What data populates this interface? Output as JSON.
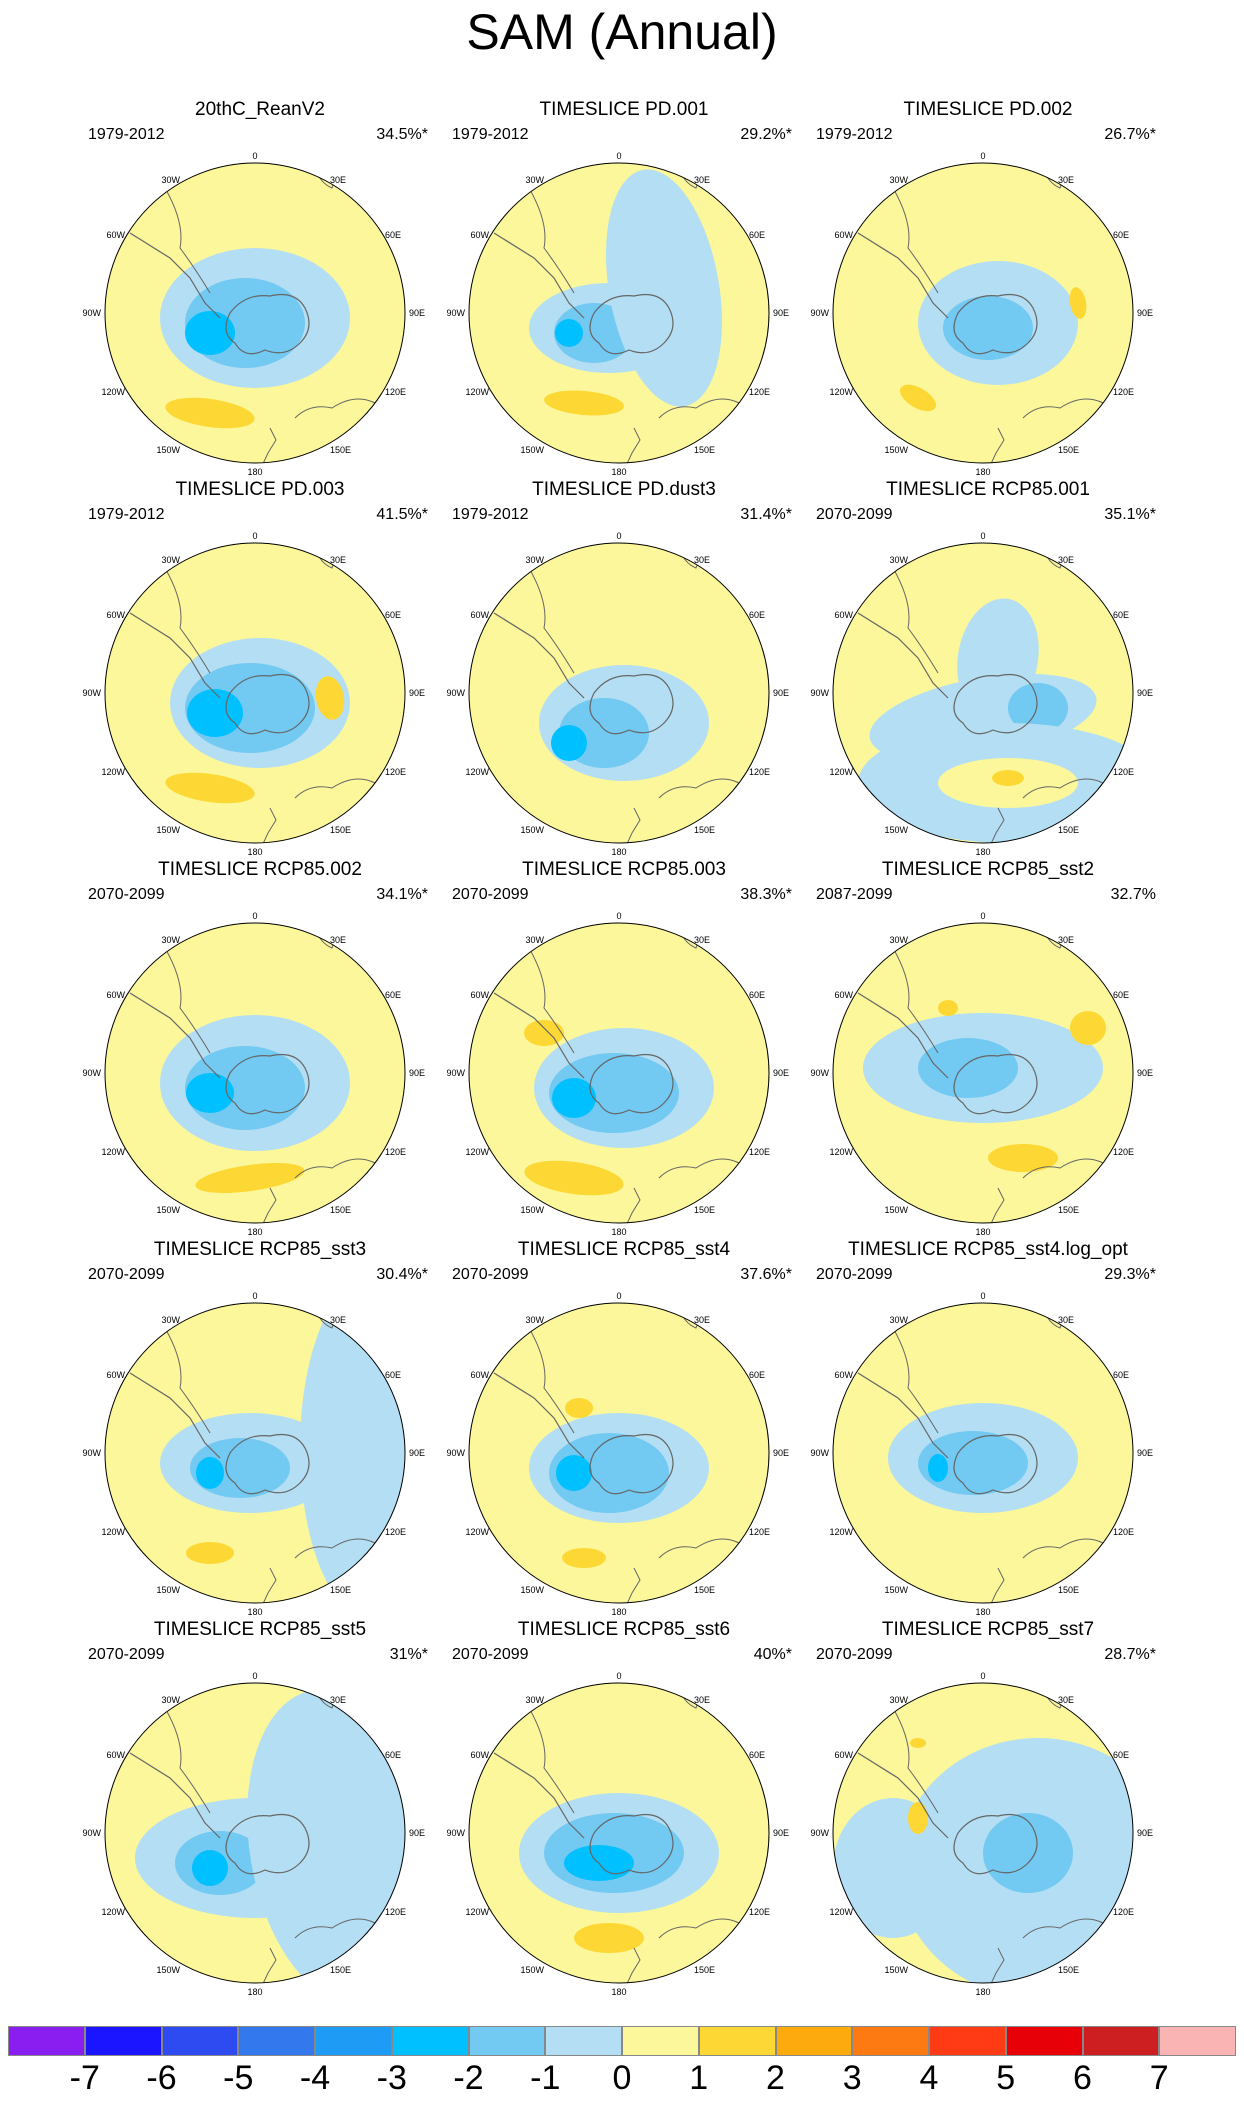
{
  "title": "SAM (Annual)",
  "map_labels": {
    "lon_top": "0",
    "lon_30w": "30W",
    "lon_30e": "30E",
    "lon_60w": "60W",
    "lon_60e": "60E",
    "lon_90w": "90W",
    "lon_90e": "90E",
    "lon_120w": "120W",
    "lon_120e": "120E",
    "lon_150w": "150W",
    "lon_150e": "150E",
    "lon_bottom": "180"
  },
  "panels": [
    {
      "title": "20thC_ReanV2",
      "period": "1979-2012",
      "percent": "34.5%*"
    },
    {
      "title": "TIMESLICE PD.001",
      "period": "1979-2012",
      "percent": "29.2%*"
    },
    {
      "title": "TIMESLICE PD.002",
      "period": "1979-2012",
      "percent": "26.7%*"
    },
    {
      "title": "TIMESLICE PD.003",
      "period": "1979-2012",
      "percent": "41.5%*"
    },
    {
      "title": "TIMESLICE PD.dust3",
      "period": "1979-2012",
      "percent": "31.4%*"
    },
    {
      "title": "TIMESLICE RCP85.001",
      "period": "2070-2099",
      "percent": "35.1%*"
    },
    {
      "title": "TIMESLICE RCP85.002",
      "period": "2070-2099",
      "percent": "34.1%*"
    },
    {
      "title": "TIMESLICE RCP85.003",
      "period": "2070-2099",
      "percent": "38.3%*"
    },
    {
      "title": "TIMESLICE RCP85_sst2",
      "period": "2087-2099",
      "percent": "32.7%"
    },
    {
      "title": "TIMESLICE RCP85_sst3",
      "period": "2070-2099",
      "percent": "30.4%*"
    },
    {
      "title": "TIMESLICE RCP85_sst4",
      "period": "2070-2099",
      "percent": "37.6%*"
    },
    {
      "title": "TIMESLICE RCP85_sst4.log_opt",
      "period": "2070-2099",
      "percent": "29.3%*"
    },
    {
      "title": "TIMESLICE RCP85_sst5",
      "period": "2070-2099",
      "percent": "31%*"
    },
    {
      "title": "TIMESLICE RCP85_sst6",
      "period": "2070-2099",
      "percent": "40%*"
    },
    {
      "title": "TIMESLICE RCP85_sst7",
      "period": "2070-2099",
      "percent": "28.7%*"
    }
  ],
  "colorbar": {
    "colors": [
      "#8a1ef0",
      "#1a14ff",
      "#2d4bf0",
      "#3478ee",
      "#1e9bf5",
      "#00c0ff",
      "#72c9f2",
      "#b4def3",
      "#fbf79a",
      "#fdd834",
      "#fcaa0d",
      "#fd7912",
      "#fe3b14",
      "#e80008",
      "#cd1e22",
      "#fbb4b4"
    ],
    "tick_labels": [
      "-7",
      "-6",
      "-5",
      "-4",
      "-3",
      "-2",
      "-1",
      "0",
      "1",
      "2",
      "3",
      "4",
      "5",
      "6",
      "7"
    ]
  },
  "colors": {
    "level_0_to_1": "#fbf79a",
    "level_1_to_2": "#fdd834",
    "level_m1_to_0": "#b4def3",
    "level_m2_to_m1": "#72c9f2",
    "level_m3_to_m2": "#00c0ff",
    "level_m4_to_m3": "#1e9bf5",
    "coastline": "#666666"
  }
}
